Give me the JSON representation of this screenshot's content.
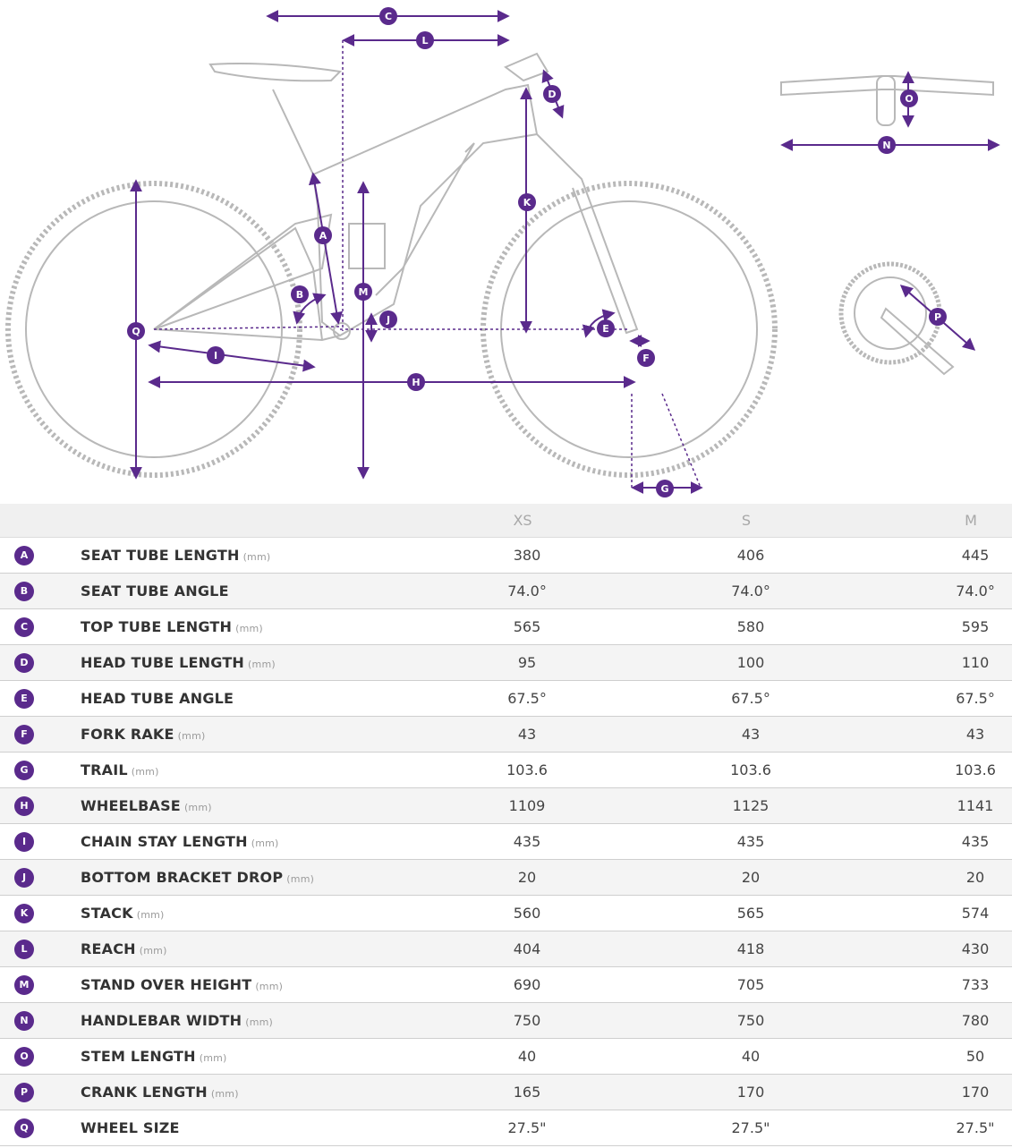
{
  "columns": [
    "XS",
    "S",
    "M"
  ],
  "rows": [
    {
      "badge": "A",
      "label": "SEAT TUBE LENGTH",
      "unit": "(mm)",
      "values": [
        "380",
        "406",
        "445"
      ]
    },
    {
      "badge": "B",
      "label": "SEAT TUBE ANGLE",
      "unit": "",
      "values": [
        "74.0°",
        "74.0°",
        "74.0°"
      ]
    },
    {
      "badge": "C",
      "label": "TOP TUBE LENGTH",
      "unit": "(mm)",
      "values": [
        "565",
        "580",
        "595"
      ]
    },
    {
      "badge": "D",
      "label": "HEAD TUBE LENGTH",
      "unit": "(mm)",
      "values": [
        "95",
        "100",
        "110"
      ]
    },
    {
      "badge": "E",
      "label": "HEAD TUBE ANGLE",
      "unit": "",
      "values": [
        "67.5°",
        "67.5°",
        "67.5°"
      ]
    },
    {
      "badge": "F",
      "label": "FORK RAKE",
      "unit": "(mm)",
      "values": [
        "43",
        "43",
        "43"
      ]
    },
    {
      "badge": "G",
      "label": "TRAIL",
      "unit": "(mm)",
      "values": [
        "103.6",
        "103.6",
        "103.6"
      ]
    },
    {
      "badge": "H",
      "label": "WHEELBASE",
      "unit": "(mm)",
      "values": [
        "1109",
        "1125",
        "1141"
      ]
    },
    {
      "badge": "I",
      "label": "CHAIN STAY LENGTH",
      "unit": "(mm)",
      "values": [
        "435",
        "435",
        "435"
      ]
    },
    {
      "badge": "J",
      "label": "BOTTOM BRACKET DROP",
      "unit": "(mm)",
      "values": [
        "20",
        "20",
        "20"
      ]
    },
    {
      "badge": "K",
      "label": "STACK",
      "unit": "(mm)",
      "values": [
        "560",
        "565",
        "574"
      ]
    },
    {
      "badge": "L",
      "label": "REACH",
      "unit": "(mm)",
      "values": [
        "404",
        "418",
        "430"
      ]
    },
    {
      "badge": "M",
      "label": "STAND OVER HEIGHT",
      "unit": "(mm)",
      "values": [
        "690",
        "705",
        "733"
      ]
    },
    {
      "badge": "N",
      "label": "HANDLEBAR WIDTH",
      "unit": "(mm)",
      "values": [
        "750",
        "750",
        "780"
      ]
    },
    {
      "badge": "O",
      "label": "STEM LENGTH",
      "unit": "(mm)",
      "values": [
        "40",
        "40",
        "50"
      ]
    },
    {
      "badge": "P",
      "label": "CRANK LENGTH",
      "unit": "(mm)",
      "values": [
        "165",
        "170",
        "170"
      ]
    },
    {
      "badge": "Q",
      "label": "WHEEL SIZE",
      "unit": "",
      "values": [
        "27.5\"",
        "27.5\"",
        "27.5\""
      ]
    }
  ],
  "colors": {
    "accent": "#5a2a8c",
    "line": "#bdbdbd",
    "header_bg": "#f0f0f0"
  }
}
